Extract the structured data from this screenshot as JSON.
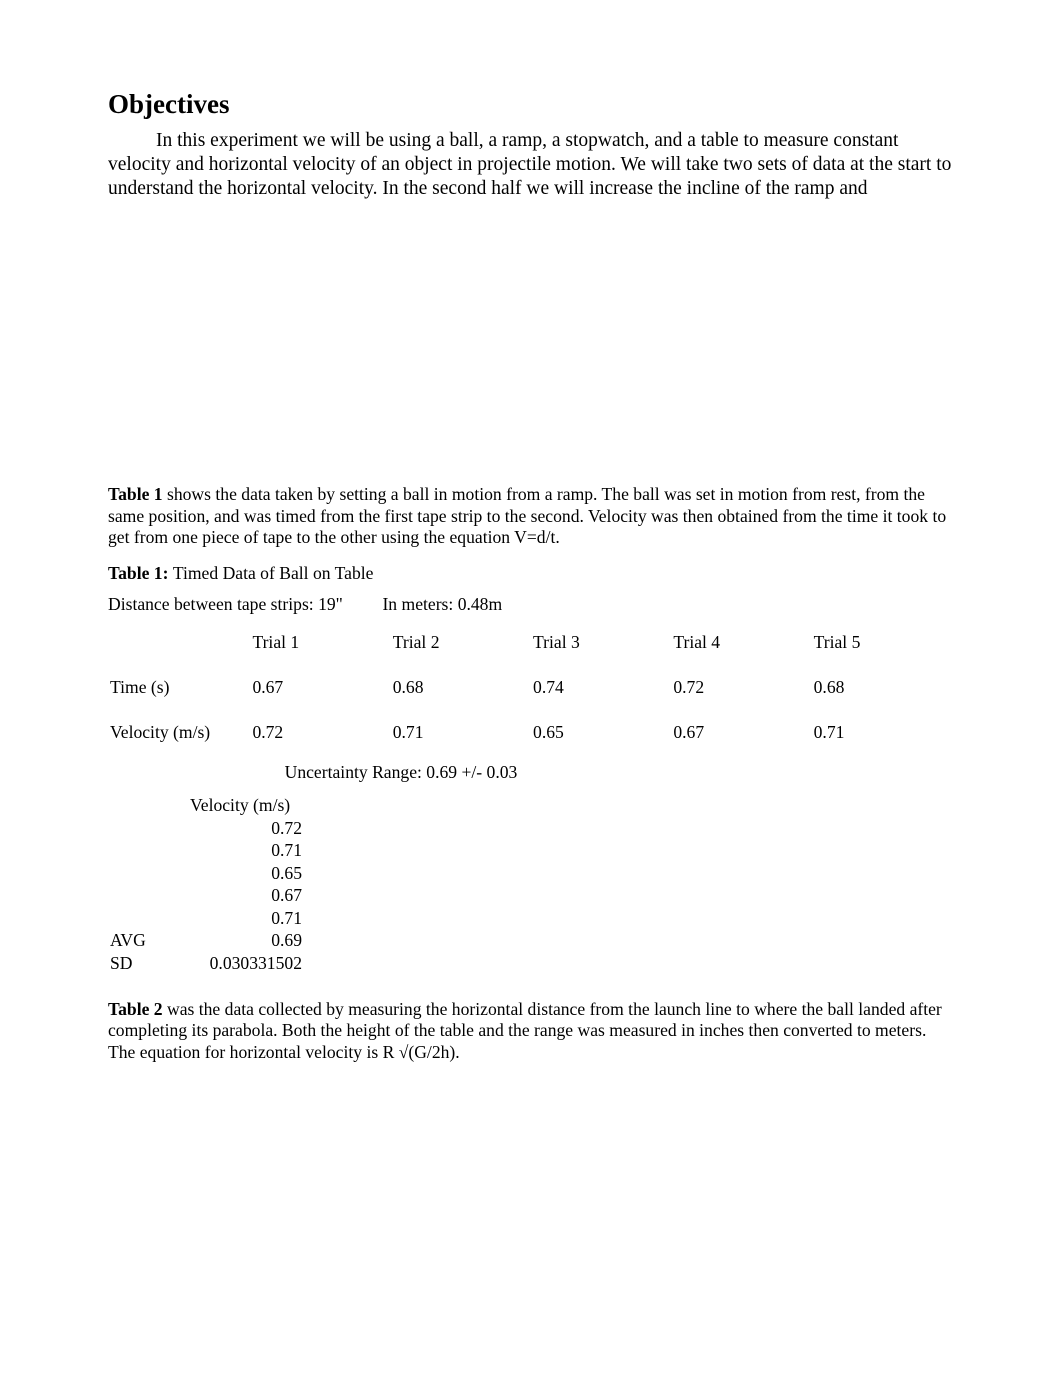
{
  "section": {
    "title": "Objectives",
    "paragraph": "In this experiment we will be using a ball, a ramp, a stopwatch, and a table to measure constant velocity and horizontal velocity of an object in projectile motion. We will take two sets of data at the start to understand the horizontal velocity. In the second half we will increase the incline of the ramp and"
  },
  "table1": {
    "caption_bold": "Table 1",
    "caption_rest": " shows the data taken by setting a ball in motion from a ramp. The ball was set in motion from rest, from the same position, and was timed from the first tape strip to the second. Velocity was then obtained from the time it took to get from one piece of tape to the other using the equation V=d/t.",
    "title_bold": "Table 1: ",
    "title_rest": "Timed Data of Ball on Table",
    "distance_label": "Distance between tape strips: 19\"",
    "distance_meters": "In meters: 0.48m",
    "headers": [
      "Trial 1",
      "Trial 2",
      "Trial 3",
      "Trial 4",
      "Trial 5"
    ],
    "row_time_label": "Time (s)",
    "row_time": [
      "0.67",
      "0.68",
      "0.74",
      "0.72",
      "0.68"
    ],
    "row_vel_label": "Velocity (m/s)",
    "row_vel": [
      "0.72",
      "0.71",
      "0.65",
      "0.67",
      "0.71"
    ],
    "uncertainty": "Uncertainty Range: 0.69 +/- 0.03"
  },
  "stats": {
    "header": "Velocity (m/s)",
    "values": [
      "0.72",
      "0.71",
      "0.65",
      "0.67",
      "0.71"
    ],
    "avg_label": "AVG",
    "avg_value": "0.69",
    "sd_label": "SD",
    "sd_value": "0.030331502"
  },
  "table2": {
    "caption_bold": "Table 2",
    "caption_rest": " was the data collected by measuring the horizontal distance from the launch line to where the ball landed after completing its parabola. Both the height of the table and the range was measured in inches then converted to meters. The equation for horizontal velocity is R √(G/2h)."
  }
}
